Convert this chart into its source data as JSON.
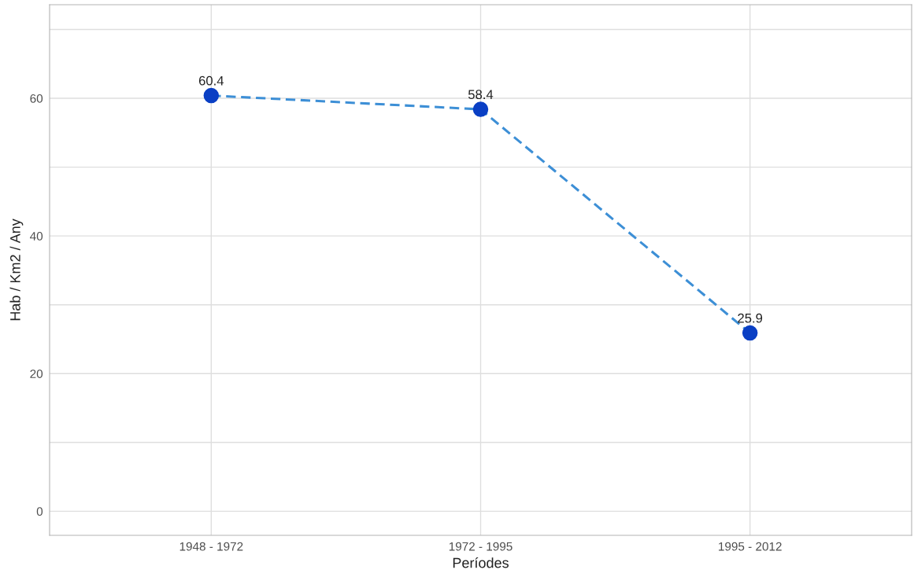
{
  "chart_data": {
    "type": "line",
    "xlabel": "Períodes",
    "ylabel": "Hab / Km2 / Any",
    "categories": [
      "1948 - 1972",
      "1972 - 1995",
      "1995 - 2012"
    ],
    "series": [
      {
        "color": "#3d8fd6",
        "colors": [
          "#0a3fc4",
          "#0a3fc4",
          "#0a3fc4"
        ],
        "values": [
          60.4,
          58.4,
          25.9
        ]
      }
    ],
    "ylim": [
      -3.5,
      73.6
    ],
    "yticks": [
      0,
      {
        "value": 10,
        "label": null
      },
      20,
      {
        "value": 30,
        "label": null
      },
      40,
      {
        "value": 50,
        "label": null
      },
      60,
      {
        "value": 70,
        "label": null
      }
    ],
    "grid": true,
    "marker": "circle",
    "line_style": "dashed",
    "data_labels": true
  }
}
